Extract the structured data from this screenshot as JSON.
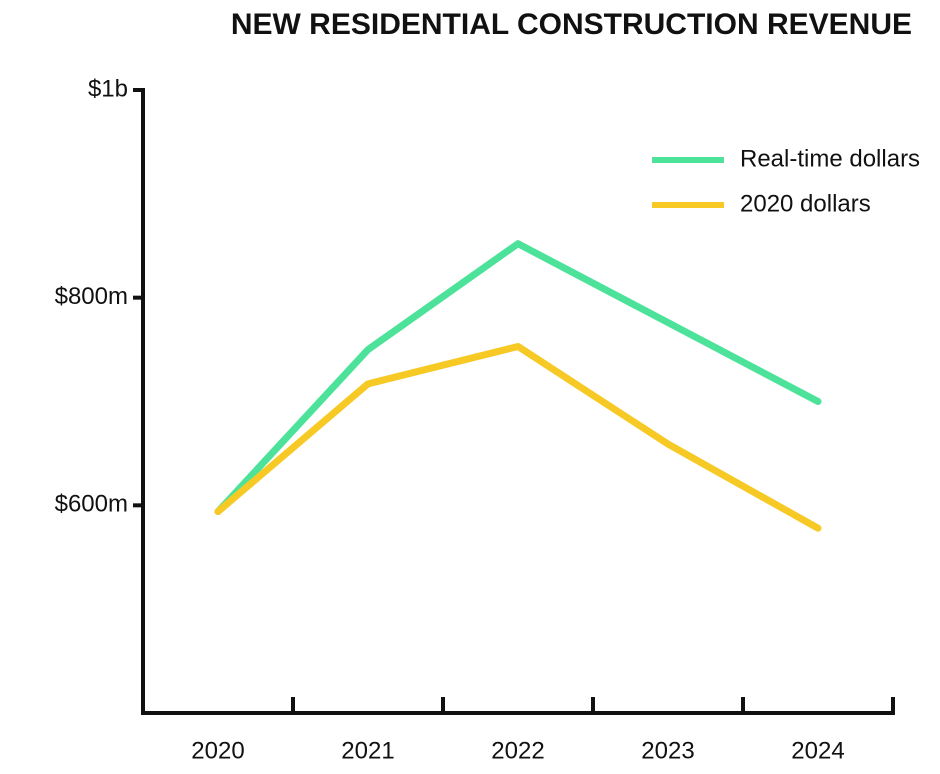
{
  "chart_data": {
    "type": "line",
    "title": "NEW RESIDENTIAL CONSTRUCTION REVENUE",
    "categories": [
      "2020",
      "2021",
      "2022",
      "2023",
      "2024"
    ],
    "series": [
      {
        "name": "Real-time dollars",
        "color": "#4de29a",
        "values": [
          594,
          750,
          852,
          776,
          700
        ]
      },
      {
        "name": "2020 dollars",
        "color": "#f7c925",
        "values": [
          594,
          717,
          753,
          659,
          578
        ]
      }
    ],
    "ylim": [
      400,
      1000
    ],
    "yticks": [
      {
        "value": 600,
        "label": "$600m"
      },
      {
        "value": 800,
        "label": "$800m"
      },
      {
        "value": 1000,
        "label": "$1b"
      }
    ],
    "legend": "top-right"
  }
}
